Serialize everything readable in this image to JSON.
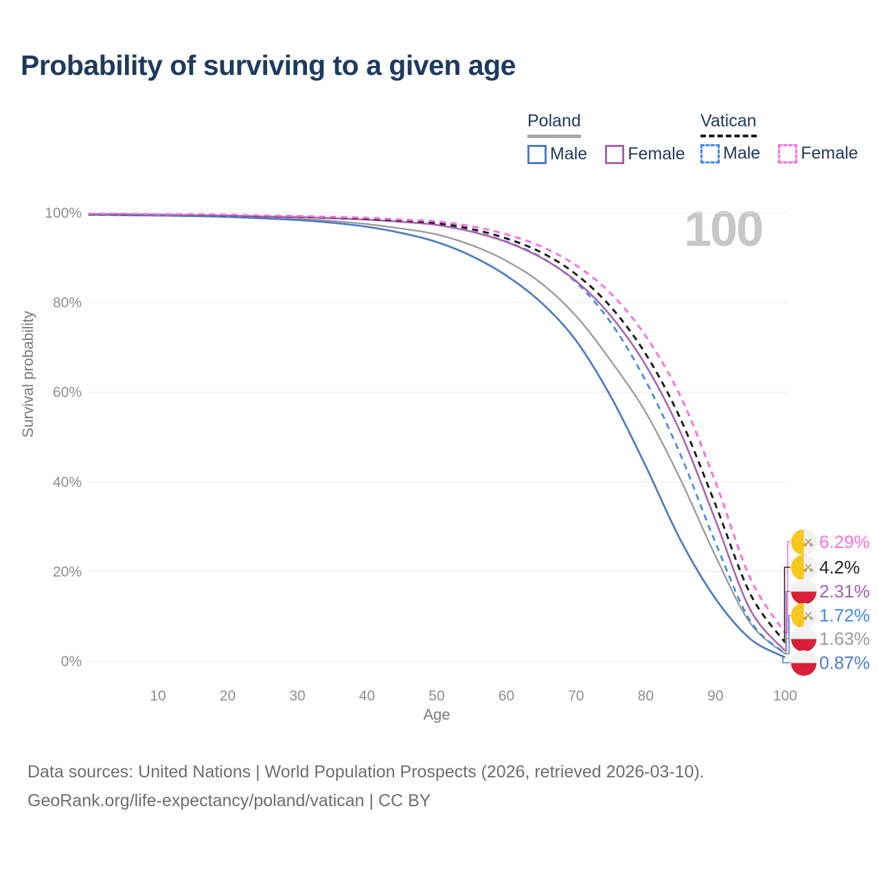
{
  "title": "Probability of surviving to a given age",
  "watermark": "100",
  "legend": {
    "groups": [
      {
        "label": "Poland",
        "line_style": "solid",
        "line_color": "#9b9b9b",
        "items": [
          {
            "label": "Male",
            "color": "#4d7cc7"
          },
          {
            "label": "Female",
            "color": "#aa62ae"
          }
        ]
      },
      {
        "label": "Vatican",
        "line_style": "dashed",
        "line_color": "#1b1b1b",
        "items": [
          {
            "label": "Male",
            "color": "#3e88f0"
          },
          {
            "label": "Female",
            "color": "#f96fe3"
          }
        ]
      }
    ]
  },
  "chart_data": {
    "type": "line",
    "title": "Probability of surviving to a given age",
    "xlabel": "Age",
    "ylabel": "Survival probability",
    "xlim": [
      0,
      100
    ],
    "ylim": [
      0,
      100
    ],
    "grid": "horizontal",
    "x_ticks": [
      10,
      20,
      30,
      40,
      50,
      60,
      70,
      80,
      90,
      100
    ],
    "y_ticks": [
      {
        "label": "0%",
        "value": 0
      },
      {
        "label": "20%",
        "value": 20
      },
      {
        "label": "40%",
        "value": 40
      },
      {
        "label": "60%",
        "value": 60
      },
      {
        "label": "80%",
        "value": 80
      },
      {
        "label": "100%",
        "value": 100
      }
    ],
    "ages": [
      0,
      5,
      10,
      15,
      20,
      25,
      30,
      35,
      40,
      45,
      50,
      55,
      60,
      65,
      70,
      75,
      80,
      85,
      90,
      95,
      100
    ],
    "series": [
      {
        "name": "Poland — Both sexes",
        "color": "#9b9b9b",
        "dash": false,
        "width": 2.4,
        "values": [
          99.6,
          99.6,
          99.5,
          99.4,
          99.2,
          99.0,
          98.7,
          98.2,
          97.5,
          96.5,
          95.2,
          92.8,
          89.3,
          84.3,
          77.0,
          67.0,
          55.5,
          40.5,
          23.5,
          8.5,
          1.63
        ]
      },
      {
        "name": "Poland — Male",
        "color": "#4d7cc7",
        "dash": false,
        "width": 2.8,
        "values": [
          99.6,
          99.5,
          99.4,
          99.3,
          99.1,
          98.8,
          98.4,
          97.8,
          96.9,
          95.5,
          93.5,
          90.4,
          86.0,
          80.0,
          71.5,
          59.0,
          43.5,
          27.0,
          14.0,
          5.0,
          0.87
        ]
      },
      {
        "name": "Vatican — Male",
        "color": "#3e88f0",
        "dash": true,
        "width": 2.7,
        "values": [
          99.7,
          99.7,
          99.6,
          99.5,
          99.4,
          99.2,
          99.1,
          98.8,
          98.5,
          98.0,
          97.4,
          95.9,
          93.6,
          90.1,
          84.5,
          75.5,
          62.5,
          46.0,
          26.5,
          9.0,
          1.72
        ]
      },
      {
        "name": "Poland — Female",
        "color": "#aa62ae",
        "dash": false,
        "width": 2.6,
        "values": [
          99.7,
          99.7,
          99.6,
          99.5,
          99.4,
          99.2,
          99.1,
          98.8,
          98.5,
          98.0,
          97.3,
          95.8,
          93.5,
          90.0,
          84.8,
          77.0,
          66.0,
          51.0,
          31.5,
          11.5,
          2.31
        ]
      },
      {
        "name": "Vatican — Both sexes",
        "color": "#1b1b1b",
        "dash": true,
        "width": 3,
        "values": [
          99.7,
          99.7,
          99.7,
          99.6,
          99.5,
          99.3,
          99.2,
          99.0,
          98.7,
          98.3,
          97.7,
          96.4,
          94.3,
          91.2,
          86.3,
          79.0,
          68.5,
          54.0,
          35.0,
          15.0,
          4.2
        ]
      },
      {
        "name": "Vatican — Female",
        "color": "#f96fe3",
        "dash": true,
        "width": 3,
        "values": [
          99.8,
          99.8,
          99.7,
          99.7,
          99.6,
          99.4,
          99.3,
          99.1,
          98.9,
          98.5,
          98.1,
          97.0,
          95.2,
          92.5,
          88.3,
          82.0,
          72.5,
          59.0,
          40.0,
          18.5,
          6.29
        ]
      }
    ],
    "end_labels": [
      {
        "value": "6.29%",
        "flag": "vatican",
        "color": "#f96fe3",
        "series": "Vatican — Female"
      },
      {
        "value": "4.2%",
        "flag": "vatican",
        "color": "#222222",
        "series": "Vatican — Both sexes"
      },
      {
        "value": "2.31%",
        "flag": "poland",
        "color": "#a55fb0",
        "series": "Poland — Female"
      },
      {
        "value": "1.72%",
        "flag": "vatican",
        "color": "#3e88f0",
        "series": "Vatican — Male"
      },
      {
        "value": "1.63%",
        "flag": "poland",
        "color": "#9b9b9b",
        "series": "Poland — Both sexes"
      },
      {
        "value": "0.87%",
        "flag": "poland",
        "color": "#4d7cc7",
        "series": "Poland — Male"
      }
    ]
  },
  "footer": {
    "line1": "Data sources: United Nations | World Population Prospects (2026, retrieved 2026-03-10).",
    "line2": "GeoRank.org/life-expectancy/poland/vatican | CC BY"
  }
}
